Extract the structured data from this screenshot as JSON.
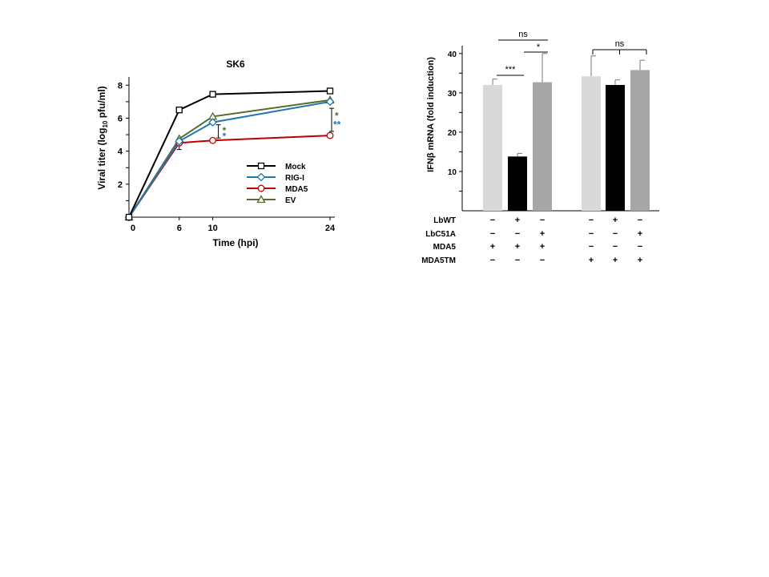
{
  "chart_data": [
    {
      "type": "line",
      "title": "SK6",
      "xlabel": "Time (hpi)",
      "ylabel_prefix": "Viral titer (log",
      "ylabel_sub": "10",
      "ylabel_suffix": " pfu/ml)",
      "x": [
        0,
        6,
        10,
        24
      ],
      "x_ticks": [
        0,
        6,
        10,
        24
      ],
      "xlim": [
        0,
        24
      ],
      "y_ticks": [
        2,
        4,
        6,
        8
      ],
      "ylim": [
        0,
        8.5
      ],
      "series": [
        {
          "name": "Mock",
          "values": [
            0,
            6.5,
            7.45,
            7.65
          ],
          "color": "#000000",
          "marker": "square"
        },
        {
          "name": "RIG-I",
          "values": [
            0,
            4.6,
            5.75,
            7.0
          ],
          "color": "#1f77b4",
          "marker": "diamond"
        },
        {
          "name": "MDA5",
          "values": [
            0,
            4.5,
            4.65,
            4.95
          ],
          "color": "#c00000",
          "marker": "circle"
        },
        {
          "name": "EV",
          "values": [
            0,
            4.75,
            6.1,
            7.1
          ],
          "color": "#556b2f",
          "marker": "triangle"
        }
      ],
      "annotations": [
        {
          "x": 10,
          "text": "*",
          "color": "#556b2f"
        },
        {
          "x": 10,
          "text": "*",
          "color": "#1f77b4"
        },
        {
          "x": 24,
          "text": "*",
          "color": "#556b2f"
        },
        {
          "x": 24,
          "text": "**",
          "color": "#1f77b4"
        }
      ],
      "legend_position": "lower-right",
      "grid": false
    },
    {
      "type": "bar",
      "ylabel": "IFNβ mRNA (fold induction)",
      "y_ticks": [
        10,
        20,
        30,
        40
      ],
      "ylim": [
        0,
        42
      ],
      "values": [
        32,
        13.8,
        32.7,
        34.2,
        32,
        35.8
      ],
      "errors": [
        1.5,
        0.8,
        7.3,
        5.2,
        1.3,
        2.5
      ],
      "colors": [
        "#d9d9d9",
        "#000000",
        "#a6a6a6",
        "#d9d9d9",
        "#000000",
        "#a6a6a6"
      ],
      "conditions": [
        {
          "name": "LbWT",
          "values": [
            "−",
            "+",
            "−",
            "−",
            "+",
            "−"
          ]
        },
        {
          "name": "LbC51A",
          "values": [
            "−",
            "−",
            "+",
            "−",
            "−",
            "+"
          ]
        },
        {
          "name": "MDA5",
          "values": [
            "+",
            "+",
            "+",
            "−",
            "−",
            "−"
          ]
        },
        {
          "name": "MDA5TM",
          "values": [
            "−",
            "−",
            "−",
            "+",
            "+",
            "+"
          ]
        }
      ],
      "significance": [
        {
          "from": 0,
          "to": 1,
          "text": "***"
        },
        {
          "from": 1,
          "to": 2,
          "text": "*"
        },
        {
          "from": 0,
          "to": 2,
          "text": "ns"
        },
        {
          "from": 3,
          "to": 5,
          "text": "ns"
        }
      ]
    }
  ]
}
